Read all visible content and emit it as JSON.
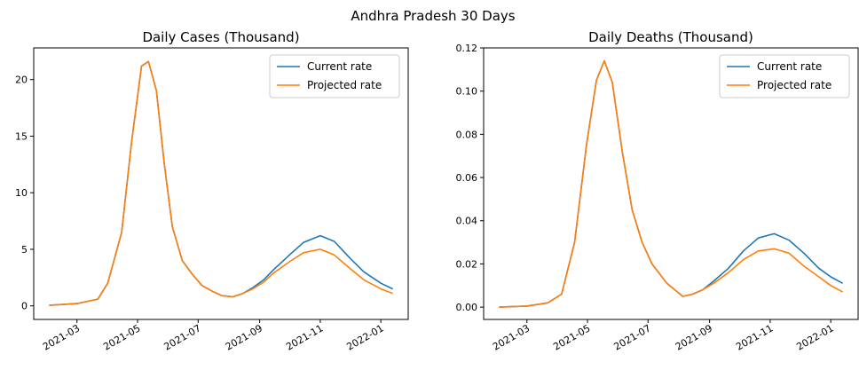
{
  "suptitle": "Andhra Pradesh 30 Days",
  "colors": {
    "current": "#1f77b4",
    "projected": "#ff7f0e",
    "axis": "#000000",
    "legend_border": "#cccccc"
  },
  "chart_data": [
    {
      "type": "line",
      "title": "Daily Cases (Thousand)",
      "xlabel": "",
      "ylabel": "",
      "x_date_range": [
        "2021-02-01",
        "2022-01-13"
      ],
      "x_ticks": [
        "2021-03",
        "2021-05",
        "2021-07",
        "2021-09",
        "2021-11",
        "2022-01"
      ],
      "ylim": [
        -1.2,
        22.8
      ],
      "y_ticks": [
        "0",
        "5",
        "10",
        "15",
        "20"
      ],
      "legend_position": "upper right",
      "grid": false,
      "x": [
        "2021-02-01",
        "2021-03-01",
        "2021-03-22",
        "2021-04-01",
        "2021-04-15",
        "2021-04-25",
        "2021-05-05",
        "2021-05-12",
        "2021-05-20",
        "2021-05-28",
        "2021-06-05",
        "2021-06-15",
        "2021-06-25",
        "2021-07-05",
        "2021-07-15",
        "2021-07-25",
        "2021-08-05",
        "2021-08-15",
        "2021-08-25",
        "2021-09-05",
        "2021-09-15",
        "2021-10-01",
        "2021-10-15",
        "2021-11-01",
        "2021-11-15",
        "2021-12-01",
        "2021-12-15",
        "2022-01-01",
        "2022-01-13"
      ],
      "series": [
        {
          "name": "Current rate",
          "color": "#1f77b4",
          "values": [
            0.05,
            0.2,
            0.6,
            2.0,
            6.5,
            14.5,
            21.2,
            21.6,
            19.0,
            12.5,
            7.0,
            4.0,
            2.8,
            1.8,
            1.3,
            0.9,
            0.8,
            1.1,
            1.6,
            2.3,
            3.2,
            4.5,
            5.6,
            6.2,
            5.7,
            4.2,
            3.0,
            2.0,
            1.5
          ]
        },
        {
          "name": "Projected rate",
          "color": "#ff7f0e",
          "values": [
            0.05,
            0.2,
            0.6,
            2.0,
            6.5,
            14.5,
            21.2,
            21.6,
            19.0,
            12.5,
            7.0,
            4.0,
            2.8,
            1.8,
            1.3,
            0.9,
            0.8,
            1.1,
            1.5,
            2.1,
            2.9,
            3.9,
            4.7,
            5.0,
            4.5,
            3.3,
            2.3,
            1.5,
            1.1
          ]
        }
      ]
    },
    {
      "type": "line",
      "title": "Daily Deaths (Thousand)",
      "xlabel": "",
      "ylabel": "",
      "x_date_range": [
        "2021-02-01",
        "2022-01-13"
      ],
      "x_ticks": [
        "2021-03",
        "2021-05",
        "2021-07",
        "2021-09",
        "2021-11",
        "2022-01"
      ],
      "ylim": [
        -0.0057,
        0.12
      ],
      "y_ticks": [
        "0.00",
        "0.02",
        "0.04",
        "0.06",
        "0.08",
        "0.10",
        "0.12"
      ],
      "legend_position": "upper right",
      "grid": false,
      "x": [
        "2021-02-01",
        "2021-03-01",
        "2021-03-22",
        "2021-04-05",
        "2021-04-18",
        "2021-04-30",
        "2021-05-10",
        "2021-05-18",
        "2021-05-26",
        "2021-06-05",
        "2021-06-15",
        "2021-06-25",
        "2021-07-05",
        "2021-07-20",
        "2021-08-05",
        "2021-08-15",
        "2021-08-25",
        "2021-09-05",
        "2021-09-20",
        "2021-10-05",
        "2021-10-20",
        "2021-11-05",
        "2021-11-20",
        "2021-12-05",
        "2021-12-20",
        "2022-01-01",
        "2022-01-13"
      ],
      "series": [
        {
          "name": "Current rate",
          "color": "#1f77b4",
          "values": [
            0.0,
            0.0005,
            0.002,
            0.006,
            0.03,
            0.075,
            0.105,
            0.114,
            0.104,
            0.072,
            0.045,
            0.03,
            0.02,
            0.011,
            0.005,
            0.006,
            0.008,
            0.012,
            0.018,
            0.026,
            0.032,
            0.034,
            0.031,
            0.025,
            0.018,
            0.014,
            0.011
          ]
        },
        {
          "name": "Projected rate",
          "color": "#ff7f0e",
          "values": [
            0.0,
            0.0005,
            0.002,
            0.006,
            0.03,
            0.075,
            0.105,
            0.114,
            0.104,
            0.072,
            0.045,
            0.03,
            0.02,
            0.011,
            0.005,
            0.006,
            0.008,
            0.011,
            0.016,
            0.022,
            0.026,
            0.027,
            0.025,
            0.019,
            0.014,
            0.01,
            0.007
          ]
        }
      ]
    }
  ]
}
